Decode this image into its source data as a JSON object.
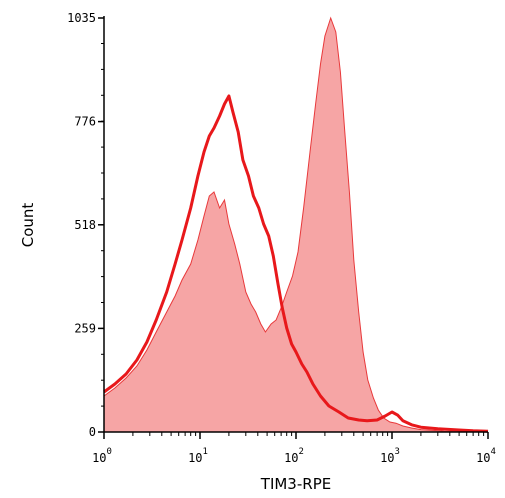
{
  "chart_data": {
    "type": "area",
    "xlabel": "TIM3-RPE",
    "ylabel": "Count",
    "x_scale": "log",
    "xlim": [
      1,
      10000
    ],
    "ylim": [
      0,
      1035
    ],
    "x_ticks": [
      {
        "value": 1,
        "base": "10",
        "exp": "0"
      },
      {
        "value": 10,
        "base": "10",
        "exp": "1"
      },
      {
        "value": 100,
        "base": "10",
        "exp": "2"
      },
      {
        "value": 1000,
        "base": "10",
        "exp": "3"
      },
      {
        "value": 10000,
        "base": "10",
        "exp": "4"
      }
    ],
    "y_ticks": [
      {
        "value": 0,
        "label": "0"
      },
      {
        "value": 259,
        "label": "259"
      },
      {
        "value": 518,
        "label": "518"
      },
      {
        "value": 776,
        "label": "776"
      },
      {
        "value": 1035,
        "label": "1035"
      }
    ],
    "grid": false,
    "legend": "none",
    "series": [
      {
        "style": "filled",
        "color": "#f6a5a5",
        "edge_color": "#e8393b",
        "x": [
          1,
          1.3,
          1.7,
          2.2,
          2.8,
          3.5,
          4.5,
          5.5,
          6.5,
          8,
          9.5,
          11,
          12.5,
          14,
          16,
          18,
          20,
          23,
          26,
          30,
          34,
          38,
          43,
          48,
          55,
          62,
          70,
          80,
          92,
          105,
          120,
          140,
          160,
          180,
          200,
          230,
          260,
          290,
          320,
          360,
          400,
          450,
          500,
          560,
          640,
          720,
          820,
          950,
          1100,
          1300,
          1600,
          2000,
          2700,
          3500,
          4500,
          6000,
          8000,
          10000
        ],
        "values": [
          90,
          110,
          135,
          165,
          205,
          250,
          300,
          340,
          380,
          420,
          480,
          540,
          590,
          600,
          560,
          580,
          520,
          470,
          420,
          350,
          320,
          300,
          270,
          250,
          270,
          280,
          310,
          350,
          390,
          450,
          560,
          700,
          820,
          920,
          990,
          1035,
          1000,
          900,
          760,
          600,
          430,
          300,
          200,
          130,
          85,
          55,
          35,
          25,
          22,
          15,
          10,
          6,
          4,
          2,
          1,
          0,
          0,
          0
        ]
      },
      {
        "style": "line",
        "color": "#e8181b",
        "x": [
          1,
          1.3,
          1.7,
          2.2,
          2.8,
          3.5,
          4.5,
          5.5,
          6.5,
          8,
          9.5,
          11,
          12.5,
          14,
          16,
          18,
          20,
          22,
          25,
          28,
          32,
          36,
          41,
          46,
          52,
          58,
          65,
          72,
          80,
          90,
          100,
          115,
          130,
          150,
          180,
          220,
          280,
          350,
          450,
          550,
          700,
          850,
          1000,
          1150,
          1300,
          1600,
          2000,
          3000,
          5000,
          7000,
          10000
        ],
        "values": [
          100,
          120,
          145,
          180,
          225,
          280,
          350,
          420,
          480,
          560,
          640,
          700,
          740,
          760,
          790,
          820,
          840,
          800,
          750,
          680,
          640,
          590,
          560,
          520,
          490,
          440,
          370,
          310,
          260,
          220,
          200,
          170,
          150,
          120,
          90,
          65,
          50,
          35,
          30,
          28,
          30,
          40,
          50,
          42,
          28,
          18,
          12,
          8,
          5,
          3,
          2
        ]
      }
    ]
  }
}
